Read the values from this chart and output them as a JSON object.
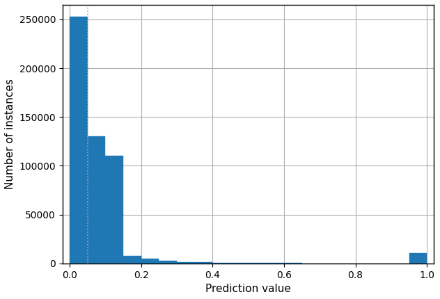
{
  "title": "",
  "xlabel": "Prediction value",
  "ylabel": "Number of instances",
  "xlim": [
    -0.02,
    1.02
  ],
  "ylim": [
    0,
    265000
  ],
  "bar_color": "#1f77b4",
  "bar_edgecolor": "#1f77b4",
  "n_bins": 20,
  "vline_x": 0.05,
  "vline_color": "#aaaaaa",
  "vline_style": "dotted",
  "vline_linewidth": 1.2,
  "grid_color": "#b0b0b0",
  "grid_alpha": 1.0,
  "grid_linestyle": "-",
  "background_color": "white",
  "yticks": [
    0,
    50000,
    100000,
    150000,
    200000,
    250000
  ],
  "xticks": [
    0.0,
    0.2,
    0.4,
    0.6,
    0.8,
    1.0
  ],
  "bin_heights": [
    253000,
    130000,
    110000,
    8000,
    4500,
    2500,
    1500,
    1000,
    700,
    500,
    350,
    250,
    200,
    150,
    120,
    100,
    80,
    60,
    40,
    10500
  ]
}
